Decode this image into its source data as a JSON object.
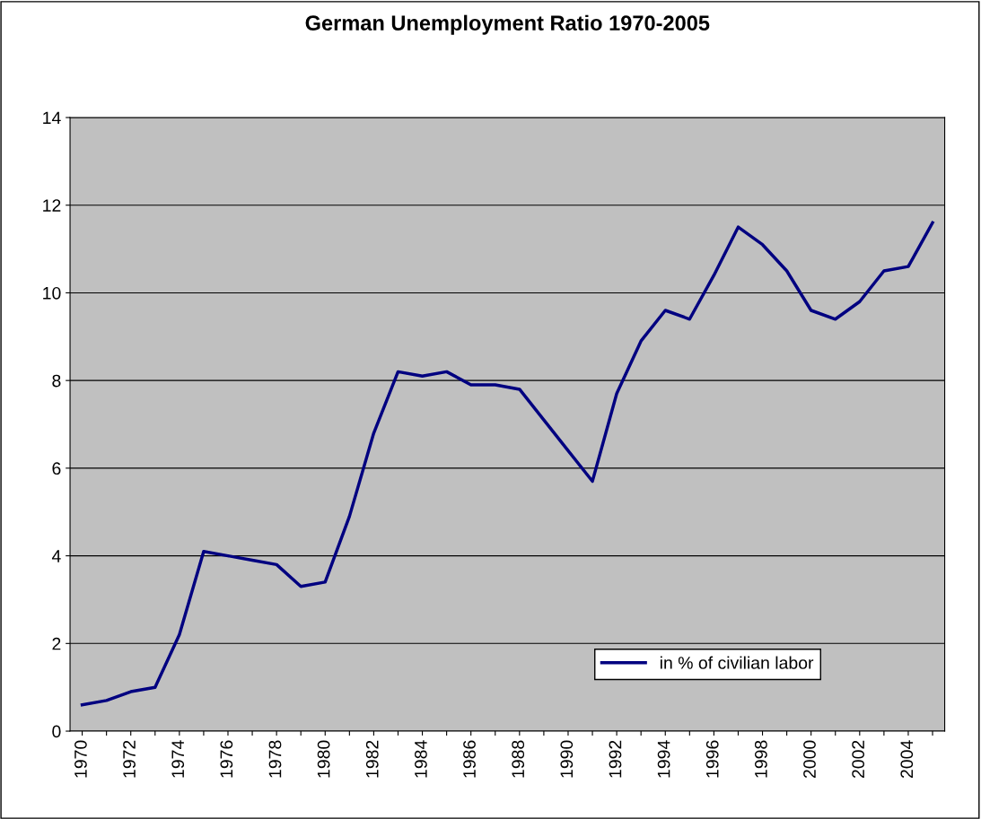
{
  "chart_data": {
    "type": "line",
    "title": "German Unemployment Ratio 1970-2005",
    "categories": [
      "1970",
      null,
      "1972",
      null,
      "1974",
      null,
      "1976",
      null,
      "1978",
      null,
      "1980",
      null,
      "1982",
      null,
      "1984",
      null,
      "1986",
      null,
      "1988",
      null,
      "1990",
      null,
      "1992",
      null,
      "1994",
      null,
      "1996",
      null,
      "1998",
      null,
      "2000",
      null,
      "2002",
      null,
      "2004",
      null
    ],
    "series": [
      {
        "name": "in % of civilian labor",
        "color": "#000080",
        "values": [
          0.6,
          0.7,
          0.9,
          1.0,
          2.2,
          4.1,
          4.0,
          3.9,
          3.8,
          3.3,
          3.4,
          4.9,
          6.8,
          8.2,
          8.1,
          8.2,
          7.9,
          7.9,
          7.8,
          7.1,
          6.4,
          5.7,
          7.7,
          8.9,
          9.6,
          9.4,
          10.4,
          11.5,
          11.1,
          10.5,
          9.6,
          9.4,
          9.8,
          10.5,
          10.6,
          11.6
        ]
      }
    ],
    "ylim": [
      0,
      14
    ],
    "yticks": [
      0,
      2,
      4,
      6,
      8,
      10,
      12,
      14
    ],
    "grid": "y",
    "legend": "bottom right",
    "marker": "none",
    "line_style": "solid"
  }
}
